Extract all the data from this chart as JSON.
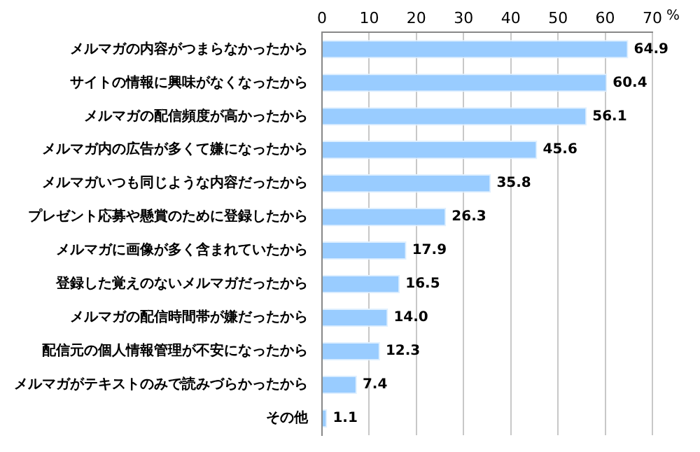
{
  "chart_data": {
    "type": "bar",
    "orientation": "horizontal",
    "xlabel": "%",
    "categories": [
      "メルマガの内容がつまらなかったから",
      "サイトの情報に興味がなくなったから",
      "メルマガの配信頻度が高かったから",
      "メルマガ内の広告が多くて嫌になったから",
      "メルマガいつも同じような内容だったから",
      "プレゼント応募や懸賞のために登録したから",
      "メルマガに画像が多く含まれていたから",
      "登録した覚えのないメルマガだったから",
      "メルマガの配信時間帯が嫌だったから",
      "配信元の個人情報管理が不安になったから",
      "メルマガがテキストのみで読みづらかったから",
      "その他"
    ],
    "values": [
      64.9,
      60.4,
      56.1,
      45.6,
      35.8,
      26.3,
      17.9,
      16.5,
      14.0,
      12.3,
      7.4,
      1.1
    ],
    "value_labels": [
      "64.9",
      "60.4",
      "56.1",
      "45.6",
      "35.8",
      "26.3",
      "17.9",
      "16.5",
      "14.0",
      "12.3",
      "7.4",
      "1.1"
    ],
    "color": "#99ccff",
    "xlim": [
      0,
      70
    ],
    "xticks": [
      0,
      10,
      20,
      30,
      40,
      50,
      60,
      70
    ],
    "grid": "x",
    "legend": false
  }
}
